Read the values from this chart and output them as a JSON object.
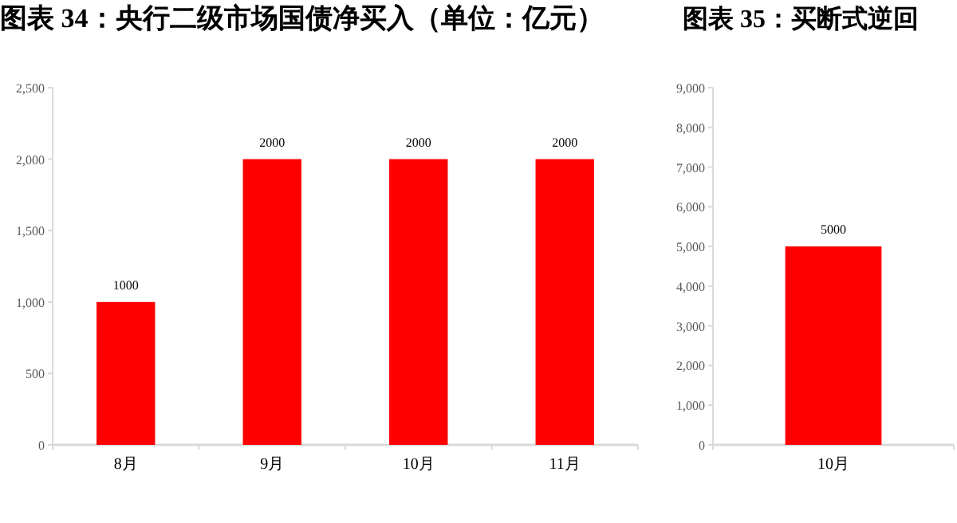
{
  "chart_data": [
    {
      "type": "bar",
      "title": "图表 34：央行二级市场国债净买入（单位：亿元）",
      "categories": [
        "8月",
        "9月",
        "10月",
        "11月"
      ],
      "values": [
        1000,
        2000,
        2000,
        2000
      ],
      "color": "#ff0000",
      "ylim": [
        0,
        2500
      ],
      "yticks": [
        0,
        {
          "value": 500,
          "label": "500"
        },
        {
          "value": 1000,
          "label": "1,000"
        },
        {
          "value": 1500,
          "label": "1,500"
        },
        {
          "value": 2000,
          "label": "2,000"
        },
        {
          "value": 2500,
          "label": "2,500"
        }
      ],
      "data_labels": true
    },
    {
      "type": "bar",
      "title": "图表 35：买断式逆回",
      "categories": [
        "10月"
      ],
      "values": [
        5000
      ],
      "color": "#ff0000",
      "ylim": [
        0,
        9000
      ],
      "yticks": [
        0,
        {
          "value": 1000,
          "label": "1,000"
        },
        {
          "value": 2000,
          "label": "2,000"
        },
        {
          "value": 3000,
          "label": "3,000"
        },
        {
          "value": 4000,
          "label": "4,000"
        },
        {
          "value": 5000,
          "label": "5,000"
        },
        {
          "value": 6000,
          "label": "6,000"
        },
        {
          "value": 7000,
          "label": "7,000"
        },
        {
          "value": 8000,
          "label": "8,000"
        },
        {
          "value": 9000,
          "label": "9,000"
        }
      ],
      "data_labels": true
    }
  ]
}
